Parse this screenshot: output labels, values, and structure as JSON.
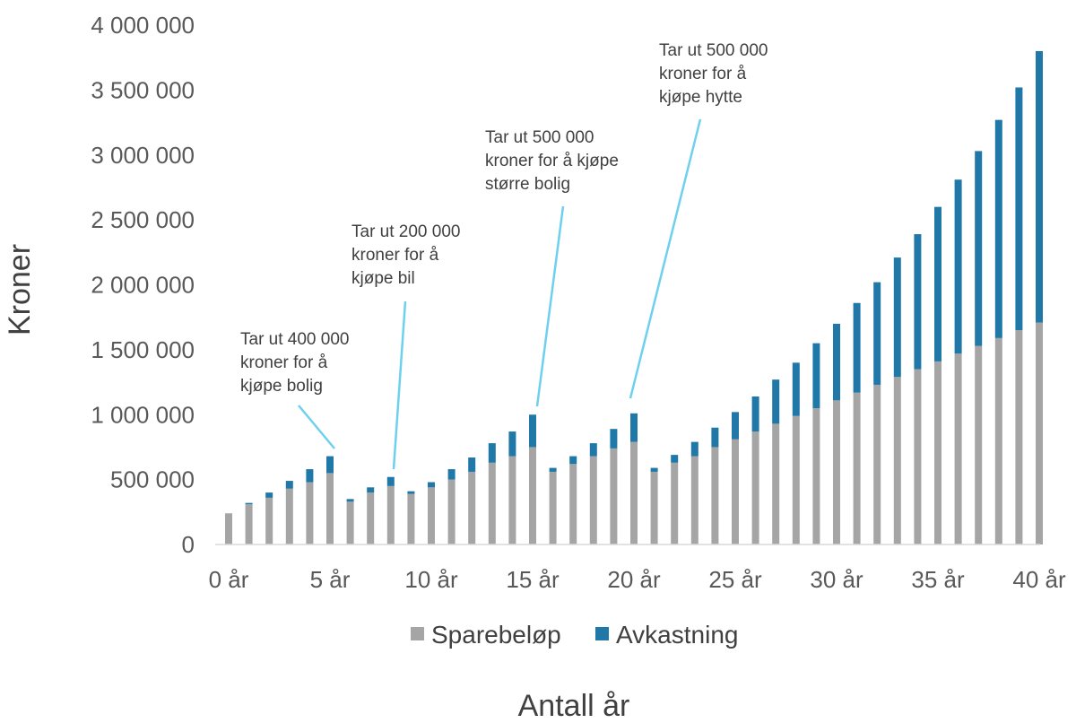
{
  "chart_data": {
    "type": "bar",
    "stacked": true,
    "title": "",
    "xlabel": "Antall år",
    "ylabel": "Kroner",
    "ylim": [
      0,
      4000000
    ],
    "yticks": [
      0,
      500000,
      1000000,
      1500000,
      2000000,
      2500000,
      3000000,
      3500000,
      4000000
    ],
    "ytick_labels": [
      "0",
      "500 000",
      "1 000 000",
      "1 500 000",
      "2 000 000",
      "2 500 000",
      "3 000 000",
      "3 500 000",
      "4 000 000"
    ],
    "x_tick_labels": [
      {
        "year": 0,
        "label": "0 år"
      },
      {
        "year": 5,
        "label": "5 år"
      },
      {
        "year": 10,
        "label": "10 år"
      },
      {
        "year": 15,
        "label": "15 år"
      },
      {
        "year": 20,
        "label": "20 år"
      },
      {
        "year": 25,
        "label": "25 år"
      },
      {
        "year": 30,
        "label": "30 år"
      },
      {
        "year": 35,
        "label": "35 år"
      },
      {
        "year": 40,
        "label": "40 år"
      }
    ],
    "grid": false,
    "legend_position": "bottom",
    "x": [
      0,
      1,
      2,
      3,
      4,
      5,
      6,
      7,
      8,
      9,
      10,
      11,
      12,
      13,
      14,
      15,
      16,
      17,
      18,
      19,
      20,
      21,
      22,
      23,
      24,
      25,
      26,
      27,
      28,
      29,
      30,
      31,
      32,
      33,
      34,
      35,
      36,
      37,
      38,
      39,
      40
    ],
    "series": [
      {
        "name": "Sparebeløp",
        "color": "#a5a5a5",
        "values": [
          240000,
          310000,
          360000,
          430000,
          480000,
          550000,
          330000,
          400000,
          450000,
          390000,
          440000,
          500000,
          560000,
          630000,
          680000,
          750000,
          560000,
          620000,
          680000,
          740000,
          790000,
          560000,
          630000,
          680000,
          750000,
          810000,
          870000,
          930000,
          990000,
          1050000,
          1110000,
          1170000,
          1230000,
          1290000,
          1350000,
          1410000,
          1470000,
          1530000,
          1590000,
          1650000,
          1710000
        ]
      },
      {
        "name": "Avkastning",
        "color": "#1f78a8",
        "values": [
          0,
          10000,
          40000,
          60000,
          100000,
          130000,
          20000,
          40000,
          70000,
          20000,
          40000,
          80000,
          110000,
          150000,
          190000,
          250000,
          30000,
          60000,
          100000,
          150000,
          220000,
          30000,
          60000,
          110000,
          150000,
          210000,
          270000,
          340000,
          410000,
          500000,
          590000,
          690000,
          790000,
          920000,
          1040000,
          1190000,
          1340000,
          1500000,
          1680000,
          1870000,
          2090000
        ]
      }
    ],
    "annotations": [
      {
        "year": 5,
        "lines": [
          "Tar ut 400 000",
          "kroner for å",
          "kjøpe bolig"
        ]
      },
      {
        "year": 8,
        "lines": [
          "Tar ut 200 000",
          "kroner for å",
          "kjøpe bil"
        ]
      },
      {
        "year": 15,
        "lines": [
          "Tar ut 500 000",
          "kroner for å kjøpe",
          "større bolig"
        ]
      },
      {
        "year": 20,
        "lines": [
          "Tar ut 500 000",
          "kroner for å",
          "kjøpe hytte"
        ]
      }
    ]
  }
}
